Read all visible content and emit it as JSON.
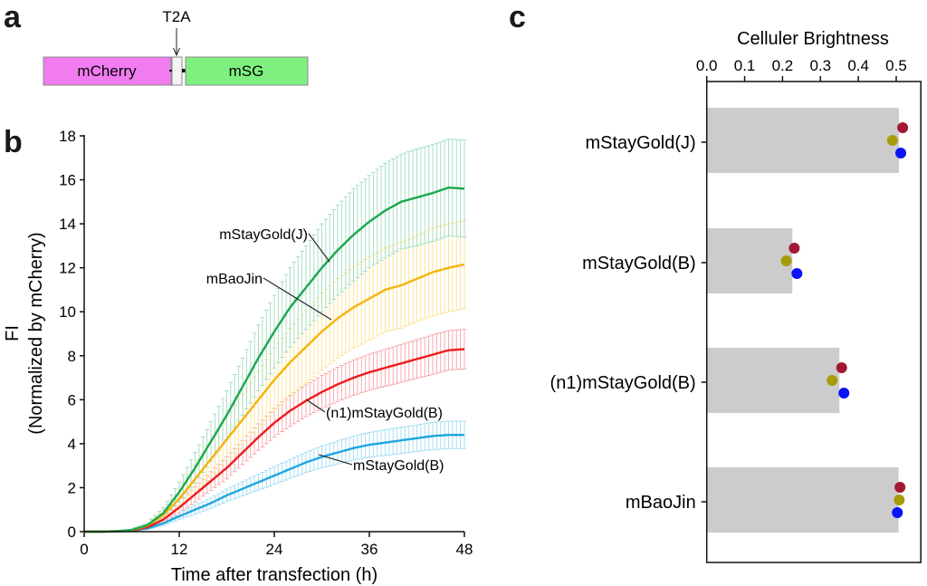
{
  "panels": {
    "a": {
      "letter": "a",
      "construct": {
        "segments": [
          {
            "name": "mCherry",
            "label": "mCherry",
            "color": "#f07cf0"
          },
          {
            "name": "T2A",
            "label": "",
            "color": "#f4f4f4"
          },
          {
            "name": "mSG",
            "label": "mSG",
            "color": "#7ff07f"
          }
        ],
        "annotation": "T2A"
      }
    },
    "b": {
      "letter": "b"
    },
    "c": {
      "letter": "c"
    }
  },
  "chart_data": [
    {
      "id": "growth",
      "type": "line",
      "title": "",
      "xlabel": "Time after transfection (h)",
      "ylabel": "FI",
      "ylabel2": "(Normalized by mCherry)",
      "xlim": [
        0,
        48
      ],
      "ylim": [
        0,
        18
      ],
      "xticks": [
        0,
        12,
        24,
        36,
        48
      ],
      "yticks": [
        0,
        2,
        4,
        6,
        8,
        10,
        12,
        14,
        16,
        18
      ],
      "grid": false,
      "legend": "inline labels with leader lines",
      "series": [
        {
          "name": "mStayGold(J)",
          "color": "#1aa84f",
          "errcolor": "#9fdcc0",
          "points": [
            [
              0,
              0
            ],
            [
              2,
              0
            ],
            [
              4,
              0.02
            ],
            [
              6,
              0.08
            ],
            [
              8,
              0.3
            ],
            [
              10,
              0.85
            ],
            [
              12,
              1.8
            ],
            [
              14,
              2.9
            ],
            [
              16,
              4.1
            ],
            [
              18,
              5.3
            ],
            [
              20,
              6.6
            ],
            [
              22,
              7.9
            ],
            [
              24,
              9.1
            ],
            [
              26,
              10.2
            ],
            [
              28,
              11.1
            ],
            [
              30,
              12.0
            ],
            [
              32,
              12.8
            ],
            [
              34,
              13.5
            ],
            [
              36,
              14.1
            ],
            [
              38,
              14.6
            ],
            [
              40,
              15.0
            ],
            [
              42,
              15.2
            ],
            [
              44,
              15.4
            ],
            [
              46,
              15.65
            ],
            [
              48,
              15.6
            ]
          ],
          "sd": [
            0,
            0,
            0.01,
            0.03,
            0.1,
            0.25,
            0.45,
            0.7,
            0.9,
            1.1,
            1.3,
            1.5,
            1.65,
            1.8,
            1.9,
            2.0,
            2.05,
            2.1,
            2.1,
            2.15,
            2.15,
            2.2,
            2.2,
            2.2,
            2.2
          ]
        },
        {
          "name": "mBaoJin",
          "color": "#f5b40a",
          "errcolor": "#fbe08e",
          "points": [
            [
              0,
              0
            ],
            [
              2,
              0
            ],
            [
              4,
              0.02
            ],
            [
              6,
              0.07
            ],
            [
              8,
              0.28
            ],
            [
              10,
              0.75
            ],
            [
              12,
              1.5
            ],
            [
              14,
              2.4
            ],
            [
              16,
              3.3
            ],
            [
              18,
              4.2
            ],
            [
              20,
              5.1
            ],
            [
              22,
              6.0
            ],
            [
              24,
              6.9
            ],
            [
              26,
              7.7
            ],
            [
              28,
              8.4
            ],
            [
              30,
              9.1
            ],
            [
              32,
              9.7
            ],
            [
              34,
              10.2
            ],
            [
              36,
              10.6
            ],
            [
              38,
              11.0
            ],
            [
              40,
              11.2
            ],
            [
              42,
              11.5
            ],
            [
              44,
              11.8
            ],
            [
              46,
              12.0
            ],
            [
              48,
              12.15
            ]
          ],
          "sd": [
            0,
            0,
            0.01,
            0.03,
            0.1,
            0.25,
            0.4,
            0.6,
            0.8,
            1.0,
            1.15,
            1.3,
            1.45,
            1.55,
            1.65,
            1.75,
            1.8,
            1.85,
            1.9,
            1.9,
            1.95,
            1.95,
            2.0,
            2.0,
            2.0
          ]
        },
        {
          "name": "(n1)mStayGold(B)",
          "color": "#ee1c1c",
          "errcolor": "#f5a3a8",
          "points": [
            [
              0,
              0
            ],
            [
              2,
              0
            ],
            [
              4,
              0.02
            ],
            [
              6,
              0.05
            ],
            [
              8,
              0.2
            ],
            [
              10,
              0.55
            ],
            [
              12,
              1.1
            ],
            [
              14,
              1.7
            ],
            [
              16,
              2.3
            ],
            [
              18,
              2.9
            ],
            [
              20,
              3.6
            ],
            [
              22,
              4.3
            ],
            [
              24,
              4.95
            ],
            [
              26,
              5.5
            ],
            [
              28,
              5.95
            ],
            [
              30,
              6.35
            ],
            [
              32,
              6.7
            ],
            [
              34,
              7.0
            ],
            [
              36,
              7.25
            ],
            [
              38,
              7.45
            ],
            [
              40,
              7.65
            ],
            [
              42,
              7.85
            ],
            [
              44,
              8.05
            ],
            [
              46,
              8.25
            ],
            [
              48,
              8.3
            ]
          ],
          "sd": [
            0,
            0,
            0.01,
            0.02,
            0.06,
            0.15,
            0.25,
            0.35,
            0.42,
            0.5,
            0.55,
            0.6,
            0.65,
            0.7,
            0.72,
            0.75,
            0.78,
            0.8,
            0.82,
            0.84,
            0.86,
            0.88,
            0.9,
            0.9,
            0.9
          ]
        },
        {
          "name": "mStayGold(B)",
          "color": "#1fa6e0",
          "errcolor": "#9fdcf3",
          "points": [
            [
              0,
              0
            ],
            [
              2,
              0
            ],
            [
              4,
              0.01
            ],
            [
              6,
              0.04
            ],
            [
              8,
              0.15
            ],
            [
              10,
              0.38
            ],
            [
              12,
              0.7
            ],
            [
              14,
              1.0
            ],
            [
              16,
              1.3
            ],
            [
              18,
              1.65
            ],
            [
              20,
              1.95
            ],
            [
              22,
              2.25
            ],
            [
              24,
              2.55
            ],
            [
              26,
              2.85
            ],
            [
              28,
              3.15
            ],
            [
              30,
              3.4
            ],
            [
              32,
              3.6
            ],
            [
              34,
              3.8
            ],
            [
              36,
              3.95
            ],
            [
              38,
              4.05
            ],
            [
              40,
              4.15
            ],
            [
              42,
              4.25
            ],
            [
              44,
              4.35
            ],
            [
              46,
              4.4
            ],
            [
              48,
              4.4
            ]
          ],
          "sd": [
            0,
            0,
            0.01,
            0.02,
            0.05,
            0.1,
            0.15,
            0.2,
            0.24,
            0.28,
            0.32,
            0.36,
            0.4,
            0.43,
            0.46,
            0.49,
            0.52,
            0.54,
            0.56,
            0.58,
            0.6,
            0.6,
            0.62,
            0.62,
            0.62
          ]
        }
      ]
    },
    {
      "id": "brightness",
      "type": "bar",
      "orientation": "horizontal",
      "title": "Celluler Brightness",
      "xlabel": "Celluler Brightness",
      "xlim": [
        0,
        0.565
      ],
      "xticks": [
        "0.0",
        "0.1",
        "0.2",
        "0.3",
        "0.4",
        "0.5"
      ],
      "grid": false,
      "bar_color": "#cbcccb",
      "categories": [
        "mStayGold(J)",
        "mStayGold(B)",
        "(n1)mStayGold(B)",
        "mBaoJin"
      ],
      "values": [
        0.507,
        0.226,
        0.35,
        0.506
      ],
      "replicates": {
        "colors": [
          "#a31833",
          "#a79c08",
          "#0a14f5"
        ],
        "values": [
          [
            0.517,
            0.49,
            0.512
          ],
          [
            0.231,
            0.21,
            0.238
          ],
          [
            0.356,
            0.331,
            0.362
          ],
          [
            0.51,
            0.508,
            0.503
          ]
        ]
      }
    }
  ]
}
